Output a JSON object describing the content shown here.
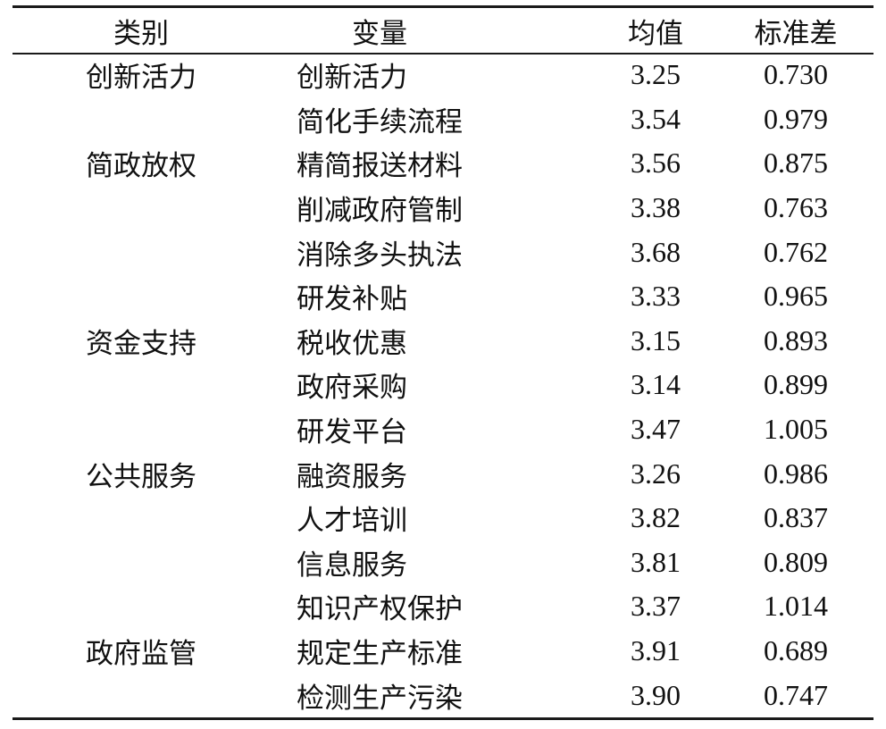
{
  "header": {
    "category": "类别",
    "variable": "变量",
    "mean": "均值",
    "sd": "标准差"
  },
  "rows": [
    {
      "category": "创新活力",
      "variable": "创新活力",
      "mean": "3.25",
      "sd": "0.730"
    },
    {
      "category": "",
      "variable": "简化手续流程",
      "mean": "3.54",
      "sd": "0.979"
    },
    {
      "category": "简政放权",
      "variable": "精简报送材料",
      "mean": "3.56",
      "sd": "0.875"
    },
    {
      "category": "",
      "variable": "削减政府管制",
      "mean": "3.38",
      "sd": "0.763"
    },
    {
      "category": "",
      "variable": "消除多头执法",
      "mean": "3.68",
      "sd": "0.762"
    },
    {
      "category": "",
      "variable": "研发补贴",
      "mean": "3.33",
      "sd": "0.965"
    },
    {
      "category": "资金支持",
      "variable": "税收优惠",
      "mean": "3.15",
      "sd": "0.893"
    },
    {
      "category": "",
      "variable": "政府采购",
      "mean": "3.14",
      "sd": "0.899"
    },
    {
      "category": "",
      "variable": "研发平台",
      "mean": "3.47",
      "sd": "1.005"
    },
    {
      "category": "公共服务",
      "variable": "融资服务",
      "mean": "3.26",
      "sd": "0.986"
    },
    {
      "category": "",
      "variable": "人才培训",
      "mean": "3.82",
      "sd": "0.837"
    },
    {
      "category": "",
      "variable": "信息服务",
      "mean": "3.81",
      "sd": "0.809"
    },
    {
      "category": "",
      "variable": "知识产权保护",
      "mean": "3.37",
      "sd": "1.014"
    },
    {
      "category": "政府监管",
      "variable": "规定生产标准",
      "mean": "3.91",
      "sd": "0.689"
    },
    {
      "category": "",
      "variable": "检测生产污染",
      "mean": "3.90",
      "sd": "0.747"
    }
  ]
}
